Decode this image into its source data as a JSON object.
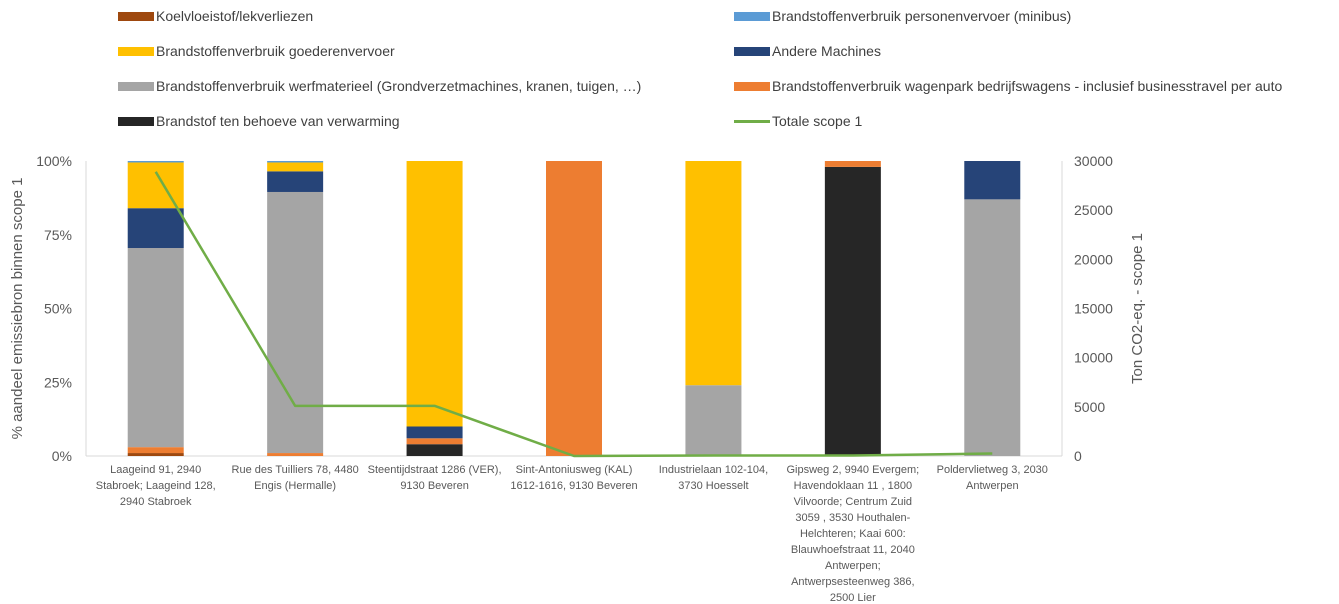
{
  "chart_data": {
    "type": "bar",
    "stacked": true,
    "y_left": {
      "label": "% aandeel emissiebron binnen scope 1",
      "ticks": [
        "0%",
        "25%",
        "50%",
        "75%",
        "100%"
      ],
      "range": [
        0,
        100
      ]
    },
    "y_right": {
      "label": "Ton CO2-eq. - scope 1",
      "ticks": [
        "0",
        "5000",
        "10000",
        "15000",
        "20000",
        "25000",
        "30000"
      ],
      "range": [
        0,
        30000
      ]
    },
    "categories": [
      "Laageind 91, 2940 Stabroek; Laageind 128, 2940 Stabroek",
      "Rue des Tuilliers 78, 4480 Engis (Hermalle)",
      "Steentijdstraat 1286 (VER), 9130 Beveren",
      "Sint-Antoniusweg (KAL) 1612-1616, 9130 Beveren",
      "Industrielaan 102-104, 3730 Hoesselt",
      "Gipsweg 2, 9940 Evergem; Havendoklaan 11 , 1800 Vilvoorde; Centrum Zuid 3059 , 3530 Houthalen-Helchteren; Kaai 600: Blauwhoefstraat 11, 2040 Antwerpen; Antwerpsesteenweg 386, 2500 Lier",
      "Poldervlietweg 3, 2030 Antwerpen"
    ],
    "category_lines": [
      [
        "Laageind 91, 2940",
        "Stabroek; Laageind 128,",
        "2940 Stabroek"
      ],
      [
        "Rue des Tuilliers 78, 4480",
        "Engis (Hermalle)"
      ],
      [
        "Steentijdstraat 1286 (VER),",
        "9130 Beveren"
      ],
      [
        "Sint-Antoniusweg (KAL)",
        "1612-1616, 9130 Beveren"
      ],
      [
        "Industrielaan 102-104,",
        "3730 Hoesselt"
      ],
      [
        "Gipsweg 2, 9940 Evergem;",
        "Havendoklaan 11 , 1800",
        "Vilvoorde;  Centrum Zuid",
        "3059 , 3530 Houthalen-",
        "Helchteren;  Kaai 600:",
        "Blauwhoefstraat 11, 2040",
        "Antwerpen;",
        "Antwerpsesteenweg 386,",
        "2500 Lier"
      ],
      [
        "Poldervlietweg 3, 2030",
        "Antwerpen"
      ]
    ],
    "series": [
      {
        "name": "Brandstof ten behoeve van verwarming",
        "color": "#262626",
        "values": [
          0,
          0,
          4,
          0,
          0,
          98,
          0
        ]
      },
      {
        "name": "Koelvloeistof/lekverliezen",
        "color": "#9E480E",
        "values": [
          1,
          0,
          0,
          0,
          0,
          0,
          0
        ]
      },
      {
        "name": "Brandstoffenverbruik wagenpark bedrijfswagens - inclusief businesstravel per auto",
        "color": "#ED7D31",
        "values": [
          2,
          1,
          2,
          100,
          0,
          2,
          0
        ]
      },
      {
        "name": "Brandstoffenverbruik werfmaterieel (Grondverzetmachines, kranen, tuigen, …)",
        "color": "#A5A5A5",
        "values": [
          67.5,
          88.5,
          0,
          0,
          24,
          0,
          87
        ]
      },
      {
        "name": "Andere Machines",
        "color": "#264478",
        "values": [
          13.5,
          7,
          4,
          0,
          0,
          0,
          13
        ]
      },
      {
        "name": "Brandstoffenverbruik goederenvervoer",
        "color": "#FFC000",
        "values": [
          15.5,
          3,
          90,
          0,
          76,
          0,
          0
        ]
      },
      {
        "name": "Brandstoffenverbruik personenvervoer (minibus)",
        "color": "#5B9BD5",
        "values": [
          0.5,
          0.5,
          0,
          0,
          0,
          0,
          0
        ]
      }
    ],
    "line": {
      "name": "Totale scope 1",
      "color": "#70AD47",
      "axis": "right",
      "values": [
        28900,
        5100,
        5100,
        0,
        50,
        50,
        250
      ]
    },
    "legend": [
      {
        "name": "Koelvloeistof/lekverliezen",
        "color": "#9E480E",
        "kind": "bar"
      },
      {
        "name": "Brandstoffenverbruik personenvervoer (minibus)",
        "color": "#5B9BD5",
        "kind": "bar"
      },
      {
        "name": "Brandstoffenverbruik goederenvervoer",
        "color": "#FFC000",
        "kind": "bar"
      },
      {
        "name": "Andere Machines",
        "color": "#264478",
        "kind": "bar"
      },
      {
        "name": "Brandstoffenverbruik werfmaterieel (Grondverzetmachines, kranen, tuigen, …)",
        "color": "#A5A5A5",
        "kind": "bar"
      },
      {
        "name": "Brandstoffenverbruik wagenpark bedrijfswagens - inclusief businesstravel per auto",
        "color": "#ED7D31",
        "kind": "bar"
      },
      {
        "name": "Brandstof ten behoeve van verwarming",
        "color": "#262626",
        "kind": "bar"
      },
      {
        "name": "Totale scope 1",
        "color": "#70AD47",
        "kind": "line"
      }
    ],
    "legend_placement": "top",
    "grid": false
  }
}
